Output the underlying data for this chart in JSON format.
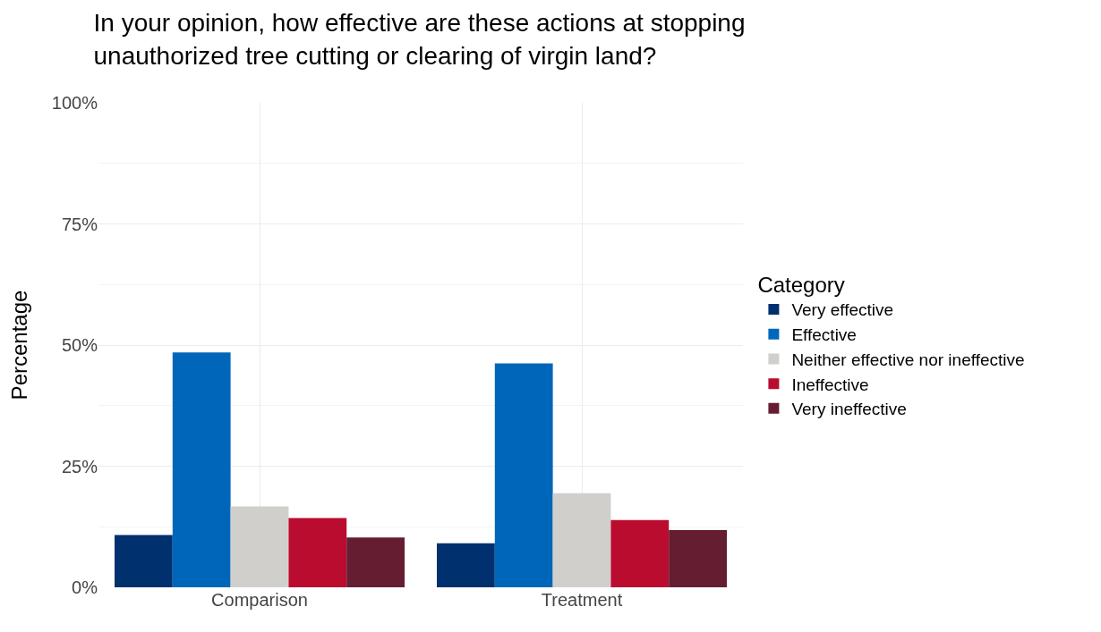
{
  "chart_data": {
    "type": "bar",
    "title": "In your opinion, how effective are these actions at stopping unauthorized tree cutting or clearing of virgin land?",
    "ylabel": "Percentage",
    "legend_title": "Category",
    "categories": [
      "Comparison",
      "Treatment"
    ],
    "series": [
      {
        "name": "Very effective",
        "color": "#00306e",
        "values": [
          10.8,
          9.1
        ]
      },
      {
        "name": "Effective",
        "color": "#0066b9",
        "values": [
          48.5,
          46.2
        ]
      },
      {
        "name": "Neither effective nor ineffective",
        "color": "#d1cfcc",
        "values": [
          16.7,
          19.4
        ]
      },
      {
        "name": "Ineffective",
        "color": "#ba0c2f",
        "values": [
          14.3,
          13.9
        ]
      },
      {
        "name": "Very ineffective",
        "color": "#651d32",
        "values": [
          10.3,
          11.8
        ]
      }
    ],
    "ylim": [
      0,
      100
    ],
    "yticks": [
      {
        "value": 0,
        "label": "0%"
      },
      {
        "value": 25,
        "label": "25%"
      },
      {
        "value": 50,
        "label": "50%"
      },
      {
        "value": 75,
        "label": "75%"
      },
      {
        "value": 100,
        "label": "100%"
      }
    ],
    "grid": true,
    "legend": "right"
  }
}
